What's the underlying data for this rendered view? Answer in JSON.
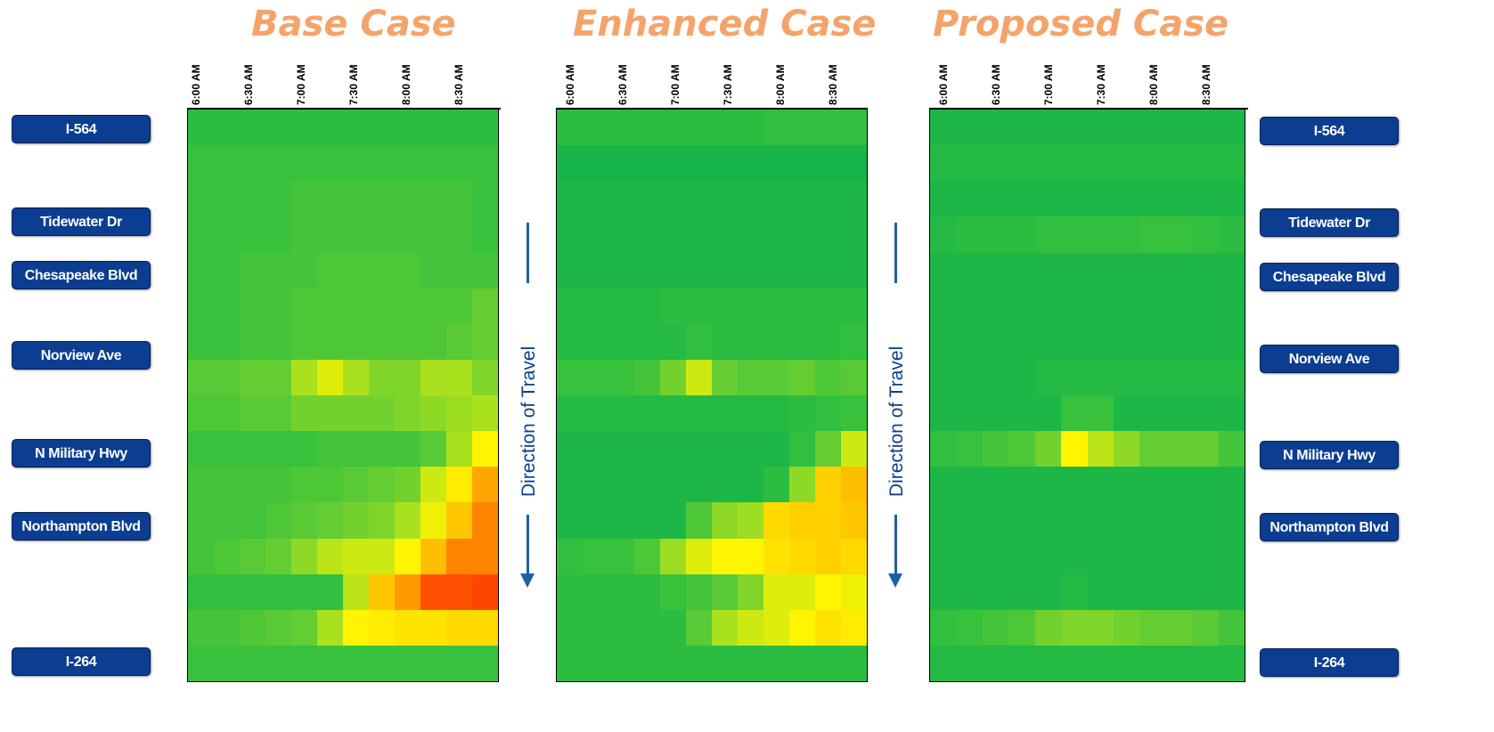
{
  "titles": [
    "Base Case",
    "Enhanced Case",
    "Proposed Case"
  ],
  "direction_label": "Direction of Travel",
  "left_locations": [
    "I-564",
    "Tidewater Dr",
    "Chesapeake Blvd",
    "Norview Ave",
    "N Military Hwy",
    "Northampton Blvd",
    "I-264"
  ],
  "right_locations": [
    "I-564",
    "Tidewater Dr",
    "Chesapeake Blvd",
    "Norview Ave",
    "N Military Hwy",
    "Northampton Blvd",
    "I-264"
  ],
  "colors": {
    "title": "#F4A46A",
    "label_bg": "#0B3D91",
    "arrow": "#1F5FA8"
  },
  "chart_data": [
    {
      "type": "heatmap",
      "title": "Base Case",
      "x_tick_labels": [
        "6:00 AM",
        "6:30 AM",
        "7:00 AM",
        "7:30 AM",
        "8:00 AM",
        "8:30 AM"
      ],
      "rows": 16,
      "cols": 12,
      "scale": "0 = green (free flow), 1 = yellow, 2 = red (congested)",
      "values": [
        [
          0.2,
          0.2,
          0.2,
          0.2,
          0.2,
          0.2,
          0.2,
          0.2,
          0.2,
          0.2,
          0.2,
          0.2
        ],
        [
          0.3,
          0.3,
          0.3,
          0.3,
          0.3,
          0.3,
          0.3,
          0.3,
          0.3,
          0.3,
          0.3,
          0.3
        ],
        [
          0.3,
          0.3,
          0.3,
          0.3,
          0.35,
          0.35,
          0.35,
          0.35,
          0.35,
          0.35,
          0.35,
          0.3
        ],
        [
          0.3,
          0.3,
          0.3,
          0.3,
          0.35,
          0.35,
          0.35,
          0.35,
          0.35,
          0.35,
          0.35,
          0.3
        ],
        [
          0.3,
          0.3,
          0.35,
          0.35,
          0.35,
          0.4,
          0.4,
          0.4,
          0.4,
          0.35,
          0.35,
          0.35
        ],
        [
          0.3,
          0.3,
          0.35,
          0.35,
          0.4,
          0.4,
          0.4,
          0.4,
          0.4,
          0.4,
          0.4,
          0.5
        ],
        [
          0.3,
          0.3,
          0.35,
          0.35,
          0.4,
          0.4,
          0.4,
          0.4,
          0.4,
          0.4,
          0.45,
          0.5
        ],
        [
          0.45,
          0.45,
          0.5,
          0.5,
          0.75,
          0.9,
          0.75,
          0.6,
          0.6,
          0.75,
          0.75,
          0.6
        ],
        [
          0.4,
          0.4,
          0.45,
          0.45,
          0.55,
          0.55,
          0.55,
          0.55,
          0.6,
          0.65,
          0.7,
          0.75
        ],
        [
          0.3,
          0.3,
          0.3,
          0.3,
          0.3,
          0.35,
          0.35,
          0.35,
          0.35,
          0.45,
          0.75,
          1.0
        ],
        [
          0.35,
          0.35,
          0.35,
          0.35,
          0.4,
          0.4,
          0.45,
          0.5,
          0.55,
          0.85,
          1.05,
          1.4
        ],
        [
          0.35,
          0.35,
          0.35,
          0.4,
          0.45,
          0.5,
          0.55,
          0.6,
          0.75,
          0.95,
          1.25,
          1.55
        ],
        [
          0.35,
          0.4,
          0.45,
          0.5,
          0.65,
          0.8,
          0.85,
          0.85,
          1.0,
          1.3,
          1.55,
          1.55
        ],
        [
          0.25,
          0.25,
          0.25,
          0.25,
          0.25,
          0.25,
          0.8,
          1.25,
          1.45,
          1.8,
          1.8,
          1.85
        ],
        [
          0.35,
          0.35,
          0.4,
          0.45,
          0.5,
          0.75,
          1.0,
          1.05,
          1.1,
          1.1,
          1.15,
          1.15
        ],
        [
          0.3,
          0.3,
          0.3,
          0.3,
          0.3,
          0.3,
          0.3,
          0.3,
          0.3,
          0.3,
          0.3,
          0.3
        ]
      ]
    },
    {
      "type": "heatmap",
      "title": "Enhanced Case",
      "x_tick_labels": [
        "6:00 AM",
        "6:30 AM",
        "7:00 AM",
        "7:30 AM",
        "8:00 AM",
        "8:30 AM"
      ],
      "rows": 16,
      "cols": 12,
      "scale": "0 = green (free flow), 1 = yellow, 2 = red (congested)",
      "values": [
        [
          0.2,
          0.2,
          0.2,
          0.2,
          0.2,
          0.2,
          0.2,
          0.2,
          0.25,
          0.25,
          0.25,
          0.25
        ],
        [
          0.05,
          0.05,
          0.05,
          0.05,
          0.05,
          0.05,
          0.05,
          0.05,
          0.05,
          0.05,
          0.05,
          0.05
        ],
        [
          0.1,
          0.1,
          0.1,
          0.1,
          0.1,
          0.1,
          0.1,
          0.1,
          0.1,
          0.1,
          0.1,
          0.1
        ],
        [
          0.1,
          0.1,
          0.1,
          0.1,
          0.1,
          0.1,
          0.1,
          0.1,
          0.1,
          0.1,
          0.1,
          0.1
        ],
        [
          0.1,
          0.1,
          0.1,
          0.1,
          0.1,
          0.1,
          0.1,
          0.1,
          0.1,
          0.1,
          0.1,
          0.1
        ],
        [
          0.15,
          0.15,
          0.15,
          0.15,
          0.2,
          0.2,
          0.2,
          0.2,
          0.2,
          0.2,
          0.2,
          0.2
        ],
        [
          0.15,
          0.15,
          0.15,
          0.15,
          0.15,
          0.25,
          0.2,
          0.2,
          0.2,
          0.2,
          0.2,
          0.25
        ],
        [
          0.3,
          0.3,
          0.3,
          0.35,
          0.55,
          0.85,
          0.5,
          0.45,
          0.45,
          0.5,
          0.4,
          0.45
        ],
        [
          0.15,
          0.15,
          0.15,
          0.15,
          0.15,
          0.15,
          0.15,
          0.15,
          0.15,
          0.2,
          0.25,
          0.3
        ],
        [
          0.1,
          0.1,
          0.1,
          0.1,
          0.1,
          0.1,
          0.1,
          0.1,
          0.1,
          0.25,
          0.5,
          0.85
        ],
        [
          0.1,
          0.1,
          0.1,
          0.1,
          0.1,
          0.1,
          0.1,
          0.1,
          0.2,
          0.65,
          1.2,
          1.3
        ],
        [
          0.1,
          0.1,
          0.1,
          0.1,
          0.1,
          0.4,
          0.65,
          0.7,
          1.15,
          1.2,
          1.2,
          1.25
        ],
        [
          0.25,
          0.3,
          0.3,
          0.4,
          0.7,
          0.9,
          1.0,
          1.0,
          1.1,
          1.15,
          1.2,
          1.15
        ],
        [
          0.2,
          0.2,
          0.2,
          0.2,
          0.3,
          0.35,
          0.45,
          0.6,
          0.9,
          0.9,
          1.0,
          0.95
        ],
        [
          0.2,
          0.2,
          0.2,
          0.2,
          0.2,
          0.45,
          0.75,
          0.85,
          0.9,
          1.0,
          1.1,
          1.05
        ],
        [
          0.2,
          0.2,
          0.2,
          0.2,
          0.2,
          0.2,
          0.2,
          0.2,
          0.2,
          0.2,
          0.2,
          0.2
        ]
      ]
    },
    {
      "type": "heatmap",
      "title": "Proposed Case",
      "x_tick_labels": [
        "6:00 AM",
        "6:30 AM",
        "7:00 AM",
        "7:30 AM",
        "8:00 AM",
        "8:30 AM"
      ],
      "rows": 16,
      "cols": 12,
      "scale": "0 = green (free flow), 1 = yellow, 2 = red (congested)",
      "values": [
        [
          0.1,
          0.1,
          0.1,
          0.1,
          0.1,
          0.1,
          0.1,
          0.1,
          0.1,
          0.1,
          0.1,
          0.1
        ],
        [
          0.15,
          0.15,
          0.15,
          0.15,
          0.15,
          0.15,
          0.15,
          0.15,
          0.15,
          0.15,
          0.15,
          0.15
        ],
        [
          0.1,
          0.1,
          0.1,
          0.1,
          0.1,
          0.1,
          0.1,
          0.1,
          0.1,
          0.1,
          0.1,
          0.1
        ],
        [
          0.15,
          0.2,
          0.2,
          0.2,
          0.25,
          0.25,
          0.25,
          0.25,
          0.3,
          0.3,
          0.25,
          0.2
        ],
        [
          0.1,
          0.1,
          0.1,
          0.1,
          0.1,
          0.1,
          0.1,
          0.1,
          0.1,
          0.1,
          0.1,
          0.1
        ],
        [
          0.1,
          0.1,
          0.1,
          0.1,
          0.1,
          0.1,
          0.1,
          0.1,
          0.1,
          0.1,
          0.1,
          0.1
        ],
        [
          0.1,
          0.1,
          0.1,
          0.1,
          0.1,
          0.1,
          0.1,
          0.1,
          0.1,
          0.1,
          0.1,
          0.1
        ],
        [
          0.1,
          0.1,
          0.1,
          0.1,
          0.15,
          0.15,
          0.15,
          0.15,
          0.15,
          0.15,
          0.15,
          0.15
        ],
        [
          0.1,
          0.1,
          0.1,
          0.1,
          0.1,
          0.3,
          0.3,
          0.1,
          0.1,
          0.1,
          0.1,
          0.1
        ],
        [
          0.25,
          0.3,
          0.35,
          0.4,
          0.55,
          1.0,
          0.8,
          0.65,
          0.5,
          0.5,
          0.5,
          0.35
        ],
        [
          0.1,
          0.1,
          0.1,
          0.1,
          0.1,
          0.1,
          0.1,
          0.1,
          0.1,
          0.1,
          0.1,
          0.1
        ],
        [
          0.1,
          0.1,
          0.1,
          0.1,
          0.1,
          0.1,
          0.1,
          0.1,
          0.1,
          0.1,
          0.1,
          0.1
        ],
        [
          0.1,
          0.1,
          0.1,
          0.1,
          0.1,
          0.1,
          0.1,
          0.1,
          0.1,
          0.1,
          0.1,
          0.1
        ],
        [
          0.1,
          0.1,
          0.1,
          0.1,
          0.1,
          0.15,
          0.1,
          0.1,
          0.1,
          0.1,
          0.1,
          0.1
        ],
        [
          0.25,
          0.3,
          0.35,
          0.4,
          0.55,
          0.6,
          0.6,
          0.55,
          0.5,
          0.5,
          0.45,
          0.35
        ],
        [
          0.15,
          0.15,
          0.15,
          0.15,
          0.15,
          0.15,
          0.15,
          0.15,
          0.15,
          0.15,
          0.15,
          0.15
        ]
      ]
    }
  ]
}
